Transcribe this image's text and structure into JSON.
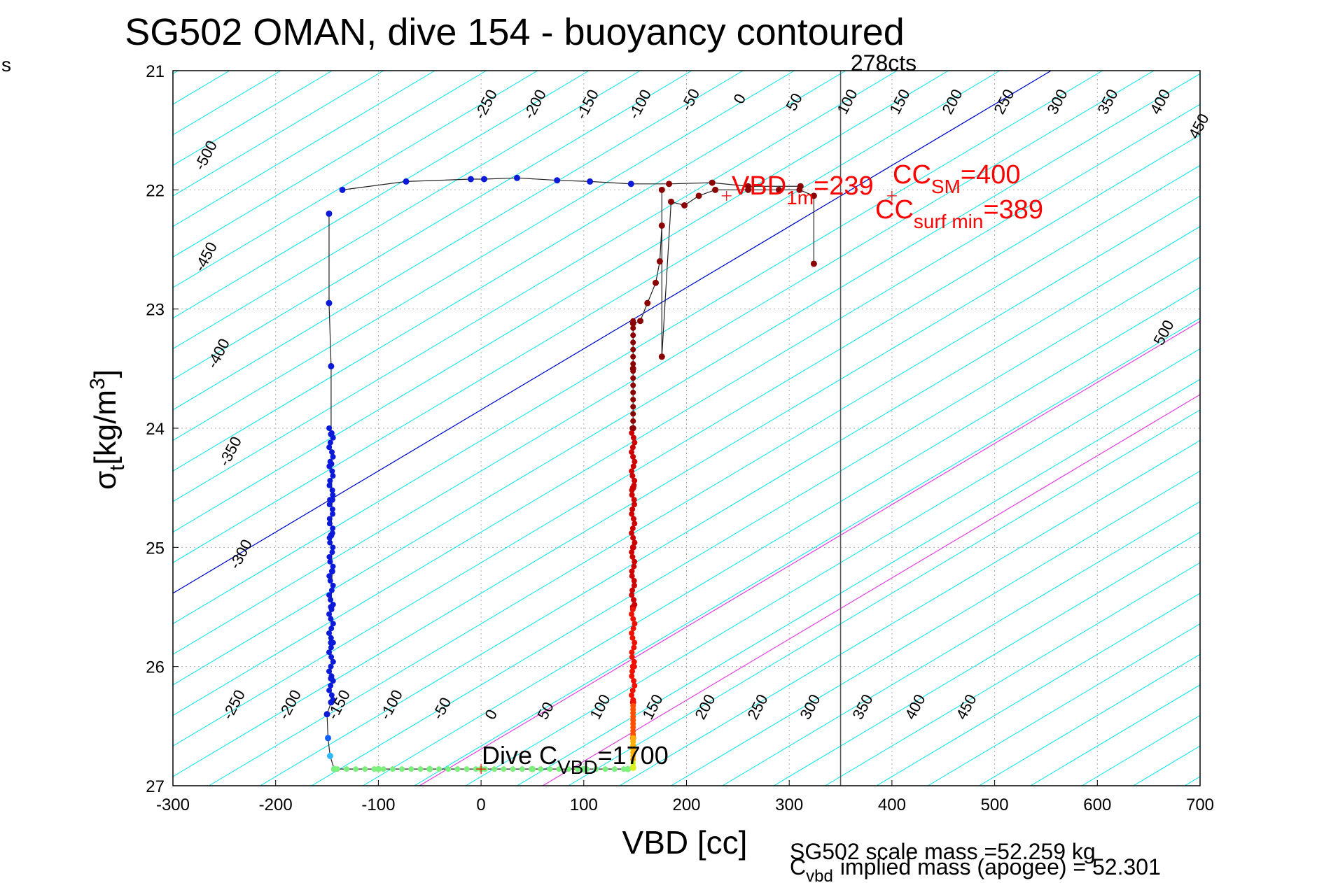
{
  "chart_data": {
    "type": "scatter",
    "title": "SG502 OMAN, dive 154 - buoyancy contoured",
    "xlabel": "VBD [cc]",
    "ylabel_main": "σ",
    "ylabel_sub": "t",
    "ylabel_units": "[kg/m",
    "ylabel_sup": "3",
    "ylabel_close": "]",
    "left_edge_text": "s",
    "xlim": [
      -300,
      700
    ],
    "ylim": [
      21,
      27
    ],
    "y_reversed": true,
    "grid": "dotted",
    "xticks": [
      -300,
      -200,
      -100,
      0,
      100,
      200,
      300,
      400,
      500,
      600,
      700
    ],
    "yticks": [
      21,
      22,
      23,
      24,
      25,
      26,
      27
    ],
    "contour_labels_top": [
      -500,
      -450,
      -400,
      -350,
      -300,
      -250,
      -200,
      -150,
      -100,
      -50,
      0,
      50,
      100,
      150,
      200,
      250,
      300,
      350,
      400,
      450,
      500
    ],
    "contour_labels_bottom": [
      -250,
      -200,
      -150,
      -100,
      -50,
      0,
      50,
      100,
      150,
      200,
      250,
      300,
      350,
      400,
      450
    ],
    "vertical_line": {
      "x": 350,
      "label": "278cts"
    },
    "annotations": {
      "vbd_1m": {
        "text": "VBD",
        "sub": "1m",
        "value": "=239"
      },
      "cc_sm": {
        "text": "CC",
        "sub": "SM",
        "value": "=400"
      },
      "cc_surf": {
        "text": "CC",
        "sub": "surf min",
        "value": "=389"
      },
      "dive_cvbd": {
        "text": "Dive C",
        "sub": "VBD",
        "value": "=1700"
      }
    },
    "footer": {
      "line1": "SG502 scale mass =52.259 kg",
      "line2_main": "C",
      "line2_sub": "vbd",
      "line2_rest": "implied mass (apogee) = 52.301"
    },
    "series": [
      {
        "name": "descent",
        "points": [
          [
            -148,
            22.2
          ],
          [
            -148,
            22.95
          ],
          [
            -146,
            23.48
          ],
          [
            -146,
            24.05
          ],
          [
            -146,
            24.3
          ],
          [
            -145,
            24.6
          ],
          [
            -146,
            24.9
          ],
          [
            -145,
            25.2
          ],
          [
            -146,
            25.5
          ],
          [
            -146,
            25.8
          ],
          [
            -146,
            26.1
          ],
          [
            -146,
            26.3
          ],
          [
            -150,
            26.4
          ],
          [
            -149,
            26.6
          ],
          [
            -147,
            26.75
          ],
          [
            -143,
            26.86
          ]
        ]
      },
      {
        "name": "bottom",
        "points": [
          [
            -143,
            26.86
          ],
          [
            -100,
            26.86
          ],
          [
            -50,
            26.86
          ],
          [
            0,
            26.86
          ],
          [
            50,
            26.86
          ],
          [
            100,
            26.86
          ],
          [
            143,
            26.86
          ]
        ]
      },
      {
        "name": "ascent",
        "points": [
          [
            148,
            26.85
          ],
          [
            148,
            26.6
          ],
          [
            148,
            26.3
          ],
          [
            148,
            26.0
          ],
          [
            148,
            25.5
          ],
          [
            148,
            25.0
          ],
          [
            148,
            24.5
          ],
          [
            148,
            24.0
          ],
          [
            148,
            23.5
          ],
          [
            148,
            23.12
          ],
          [
            155,
            23.1
          ],
          [
            162,
            22.95
          ],
          [
            170,
            22.78
          ],
          [
            174,
            22.6
          ],
          [
            176,
            22.3
          ],
          [
            176,
            22.0
          ],
          [
            176,
            23.4
          ],
          [
            185,
            22.1
          ],
          [
            198,
            22.13
          ],
          [
            212,
            22.05
          ],
          [
            228,
            22.0
          ],
          [
            260,
            22.0
          ],
          [
            290,
            22.0
          ],
          [
            310,
            22.0
          ],
          [
            324,
            22.05
          ],
          [
            324,
            22.62
          ]
        ]
      },
      {
        "name": "surface",
        "points": [
          [
            -135,
            22.0
          ],
          [
            -73,
            21.93
          ],
          [
            -10,
            21.91
          ],
          [
            3,
            21.91
          ],
          [
            35,
            21.9
          ],
          [
            74,
            21.92
          ],
          [
            106,
            21.93
          ],
          [
            146,
            21.95
          ],
          [
            183,
            21.95
          ],
          [
            225,
            21.94
          ],
          [
            260,
            21.97
          ],
          [
            311,
            21.97
          ]
        ]
      }
    ]
  },
  "colors": {
    "contour": "#00e5ee",
    "zero_line": "#0000cc",
    "pos_lines": "#e040e0",
    "descent": "#0a1ad8",
    "ascent": "#8b0000",
    "bottom": "#7cf07c",
    "annotation": "#ff0000",
    "grid": "#b0b0b0"
  }
}
